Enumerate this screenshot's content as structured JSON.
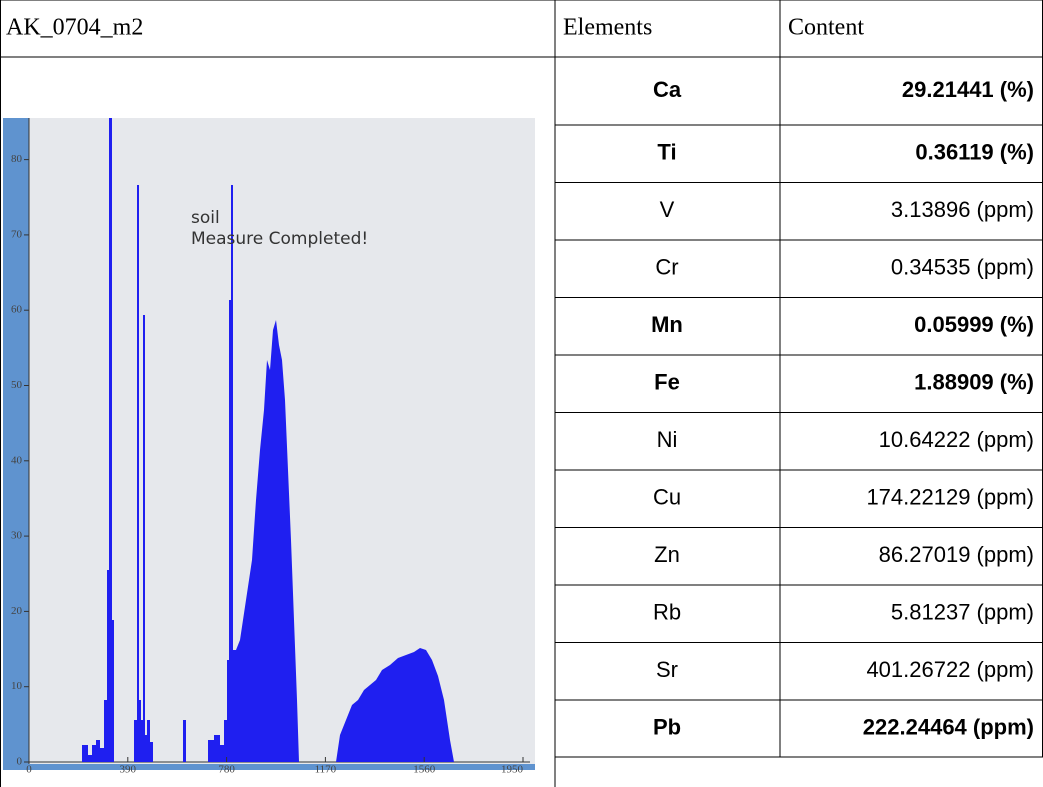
{
  "table": {
    "header": [
      "AK_0704_m2",
      "Elements",
      "Content"
    ],
    "rows": [
      {
        "element": "Ca",
        "content": "29.21441 (%)",
        "bold": true
      },
      {
        "element": "Ti",
        "content": "0.36119 (%)",
        "bold": true
      },
      {
        "element": "V",
        "content": "3.13896 (ppm)",
        "bold": false
      },
      {
        "element": "Cr",
        "content": "0.34535 (ppm)",
        "bold": false
      },
      {
        "element": "Mn",
        "content": "0.05999 (%)",
        "bold": true
      },
      {
        "element": "Fe",
        "content": "1.88909 (%)",
        "bold": true
      },
      {
        "element": "Ni",
        "content": "10.64222 (ppm)",
        "bold": false
      },
      {
        "element": "Cu",
        "content": "174.22129 (ppm)",
        "bold": false
      },
      {
        "element": "Zn",
        "content": "86.27019 (ppm)",
        "bold": false
      },
      {
        "element": "Rb",
        "content": "5.81237 (ppm)",
        "bold": false
      },
      {
        "element": "Sr",
        "content": "401.26722 (ppm)",
        "bold": false
      },
      {
        "element": "Pb",
        "content": "222.24464 (ppm)",
        "bold": true
      }
    ]
  },
  "photo": {
    "sample": "soil",
    "status": "Measure Completed!",
    "y_tick_labels": [
      "0",
      "10",
      "20",
      "30",
      "40",
      "50",
      "60",
      "70",
      "80"
    ],
    "x_tick_labels": [
      "0",
      "390",
      "780",
      "1170",
      "1560",
      "1950"
    ]
  }
}
